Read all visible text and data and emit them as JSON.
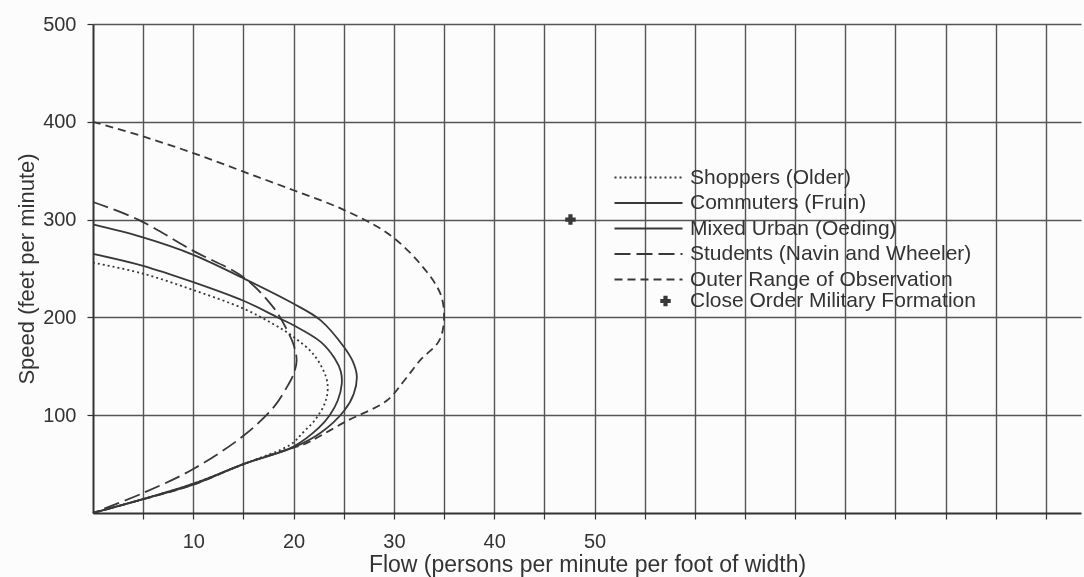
{
  "chart_data": {
    "type": "line",
    "xlabel": "Flow (persons per minute per foot of width)",
    "ylabel": "Speed (feet per minute)",
    "xlim": [
      0,
      98.5
    ],
    "ylim": [
      0,
      500
    ],
    "xticks": [
      {
        "value": 5,
        "label": null
      },
      10,
      {
        "value": 15,
        "label": null
      },
      20,
      {
        "value": 25,
        "label": null
      },
      30,
      {
        "value": 35,
        "label": null
      },
      40,
      {
        "value": 45,
        "label": null
      },
      50,
      {
        "value": 55,
        "label": null
      },
      {
        "value": 60,
        "label": null
      },
      {
        "value": 65,
        "label": null
      },
      {
        "value": 70,
        "label": null
      },
      {
        "value": 75,
        "label": null
      },
      {
        "value": 80,
        "label": null
      },
      {
        "value": 85,
        "label": null
      },
      {
        "value": 90,
        "label": null
      },
      {
        "value": 95,
        "label": null
      }
    ],
    "yticks": [
      100,
      200,
      300,
      400,
      500
    ],
    "grid": true,
    "legend": "right",
    "marker": "none",
    "series": [
      {
        "name": "Shoppers (Older)",
        "color": "#383838",
        "line_style": "dotted",
        "x": [
          0,
          4.9,
          10,
          15,
          18,
          20,
          22,
          23.2,
          23.4,
          23.1,
          22.2,
          21,
          19.7,
          15,
          10,
          4.9,
          0
        ],
        "values": [
          256,
          245,
          228,
          209,
          193,
          180,
          162,
          140,
          126,
          112,
          96,
          83,
          70,
          50,
          30,
          14,
          0
        ]
      },
      {
        "name": "Commuters (Fruin)",
        "color": "#383838",
        "line_style": "solid",
        "x": [
          0,
          4.9,
          10,
          15,
          18.4,
          20,
          22.7,
          24.1,
          24.7,
          24.8,
          24.4,
          23.6,
          22.5,
          20,
          15,
          10,
          4.9,
          0
        ],
        "values": [
          265,
          253,
          236,
          217,
          200,
          192,
          175,
          158,
          145,
          132,
          115,
          100,
          87,
          68,
          50,
          30,
          14,
          0
        ]
      },
      {
        "name": "Mixed Urban (Oeding)",
        "color": "#383838",
        "line_style": "solid",
        "x": [
          0,
          4.9,
          10,
          15,
          20,
          22.7,
          25,
          25.9,
          26.3,
          26,
          25,
          22.7,
          20,
          15,
          10,
          4.9,
          0
        ],
        "values": [
          295,
          282,
          264,
          240,
          214,
          197,
          170,
          155,
          140,
          122,
          104,
          82,
          67,
          50,
          29,
          14,
          0
        ]
      },
      {
        "name": "Students (Navin and Wheeler)",
        "color": "#383838",
        "line_style": "dashed",
        "x": [
          0,
          4.5,
          10,
          15,
          18,
          19.4,
          20,
          20.3,
          20,
          19.4,
          18,
          15,
          10,
          4.9,
          0
        ],
        "values": [
          318,
          300,
          268,
          241,
          210,
          186,
          172,
          156,
          142,
          130,
          108,
          79,
          45,
          20,
          0
        ]
      },
      {
        "name": "Outer Range of Observation",
        "color": "#383838",
        "line_style": "dashed",
        "x": [
          0,
          5,
          10,
          15,
          20,
          25,
          29.5,
          32.6,
          34.6,
          35,
          34.5,
          32.6,
          31,
          29.3,
          25.3,
          21,
          20,
          15,
          10,
          5,
          0
        ],
        "values": [
          400,
          385,
          368,
          349,
          330,
          310,
          285,
          255,
          225,
          200,
          176,
          156,
          135,
          115,
          94,
          70,
          67,
          50,
          29,
          14,
          0
        ]
      },
      {
        "name": "Close Order Military Formation",
        "type": "scatter",
        "marker": "cross",
        "color": "#383838",
        "x": [
          47.6
        ],
        "values": [
          300
        ]
      }
    ]
  }
}
